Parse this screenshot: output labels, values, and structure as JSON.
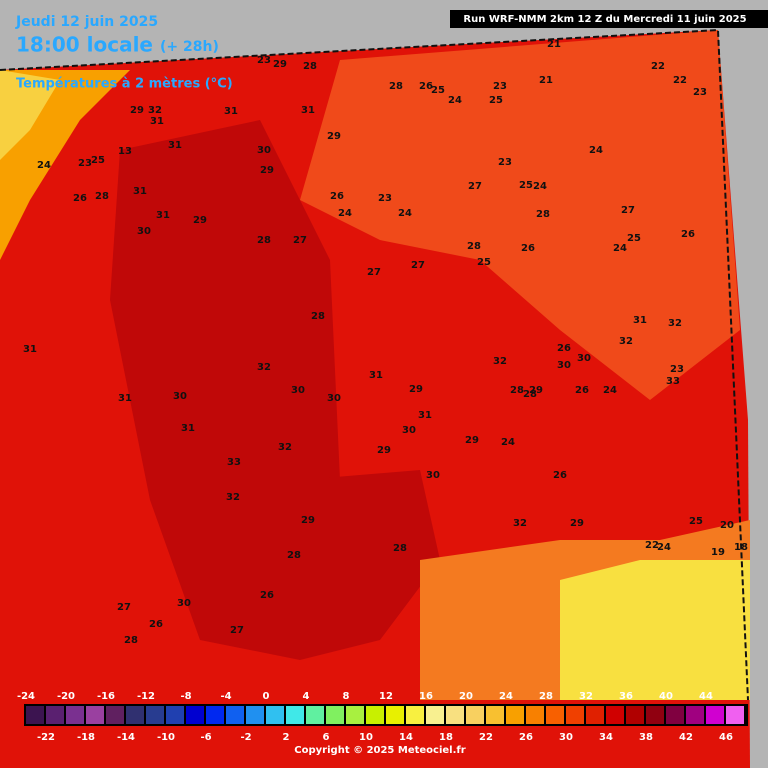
{
  "header": {
    "date": "Jeudi 12 juin 2025",
    "time": "18:00 locale",
    "lead": "(+ 28h)",
    "run": "Run WRF-NMM 2km 12 Z du Mercredi 11 juin 2025",
    "variable": "Températures à 2 mètres (°C)"
  },
  "scale": {
    "colors": [
      "#3c1450",
      "#5a2070",
      "#7a3090",
      "#9a40a0",
      "#602060",
      "#303070",
      "#283c90",
      "#2040b0",
      "#0000d0",
      "#0028f0",
      "#1060f0",
      "#2090f0",
      "#30c0f0",
      "#40e8e8",
      "#60f0a0",
      "#80f060",
      "#a8f040",
      "#c8f000",
      "#e8f000",
      "#f8f040",
      "#f8f090",
      "#f8e080",
      "#f8d060",
      "#f8c030",
      "#f8a000",
      "#f88000",
      "#f86000",
      "#f04000",
      "#e02000",
      "#d00000",
      "#b00000",
      "#900010",
      "#800040",
      "#a00080",
      "#d000d0",
      "#f060f0"
    ],
    "labels": [
      -24,
      -22,
      -20,
      -18,
      -16,
      -14,
      -12,
      -10,
      -8,
      -6,
      -4,
      -2,
      0,
      2,
      4,
      6,
      8,
      10,
      12,
      14,
      16,
      18,
      20,
      22,
      24,
      26,
      28,
      30,
      32,
      34,
      36,
      38,
      40,
      42,
      44,
      46
    ]
  },
  "map": {
    "labels": [
      23,
      29,
      28,
      21,
      22,
      22,
      23,
      28,
      26,
      25,
      24,
      21,
      23,
      25,
      32,
      29,
      31,
      31,
      31,
      30,
      29,
      24,
      23,
      25,
      13,
      26,
      28,
      31,
      31,
      29,
      26,
      24,
      23,
      24,
      27,
      25,
      24,
      23,
      24,
      28,
      27,
      25,
      24,
      26,
      30,
      31,
      29,
      28,
      27,
      27,
      27,
      26,
      25,
      28,
      26,
      30,
      30,
      32,
      31,
      32,
      33,
      29,
      31,
      30,
      32,
      30,
      28,
      26,
      24,
      23,
      31,
      30,
      31,
      33,
      32,
      32,
      29,
      28,
      27,
      26,
      28,
      30,
      26,
      27,
      28,
      28,
      24,
      29,
      32,
      31,
      30,
      28,
      29,
      30,
      29,
      32,
      29,
      26,
      31,
      25,
      20,
      19,
      18,
      24,
      22
    ]
  },
  "footer": {
    "copyright": "Copyright © 2025 Meteociel.fr"
  }
}
